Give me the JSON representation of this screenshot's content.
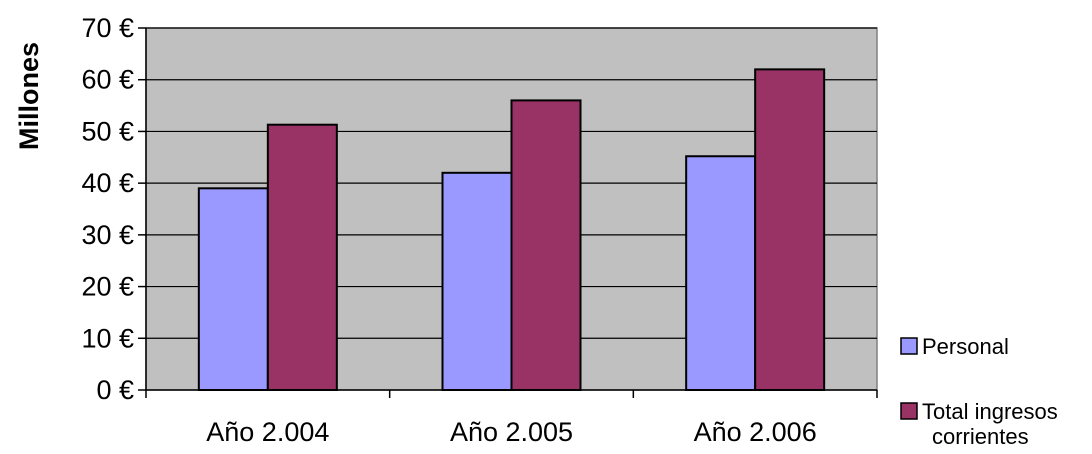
{
  "chart_data": {
    "type": "bar",
    "categories": [
      "Año 2.004",
      "Año 2.005",
      "Año 2.006"
    ],
    "series": [
      {
        "name": "Personal",
        "values": [
          39,
          42,
          45.2
        ],
        "color": "#9999ff"
      },
      {
        "name": "Total ingresos corrientes",
        "values": [
          51.3,
          56,
          62
        ],
        "color": "#993366"
      }
    ],
    "title": "",
    "xlabel": "",
    "ylabel": "Millones",
    "ylim": [
      0,
      70
    ],
    "yticks": [
      0,
      10,
      20,
      30,
      40,
      50,
      60,
      70
    ],
    "ytick_labels": [
      "0 €",
      "10 €",
      "20 €",
      "30 €",
      "40 €",
      "50 €",
      "60 €",
      "70 €"
    ],
    "grid": true,
    "legend_position": "right",
    "plot_background": "#c0c0c0",
    "legend": {
      "items": [
        {
          "label_lines": [
            "Personal"
          ]
        },
        {
          "label_lines": [
            "Total ingresos",
            "corrientes"
          ]
        }
      ]
    }
  }
}
